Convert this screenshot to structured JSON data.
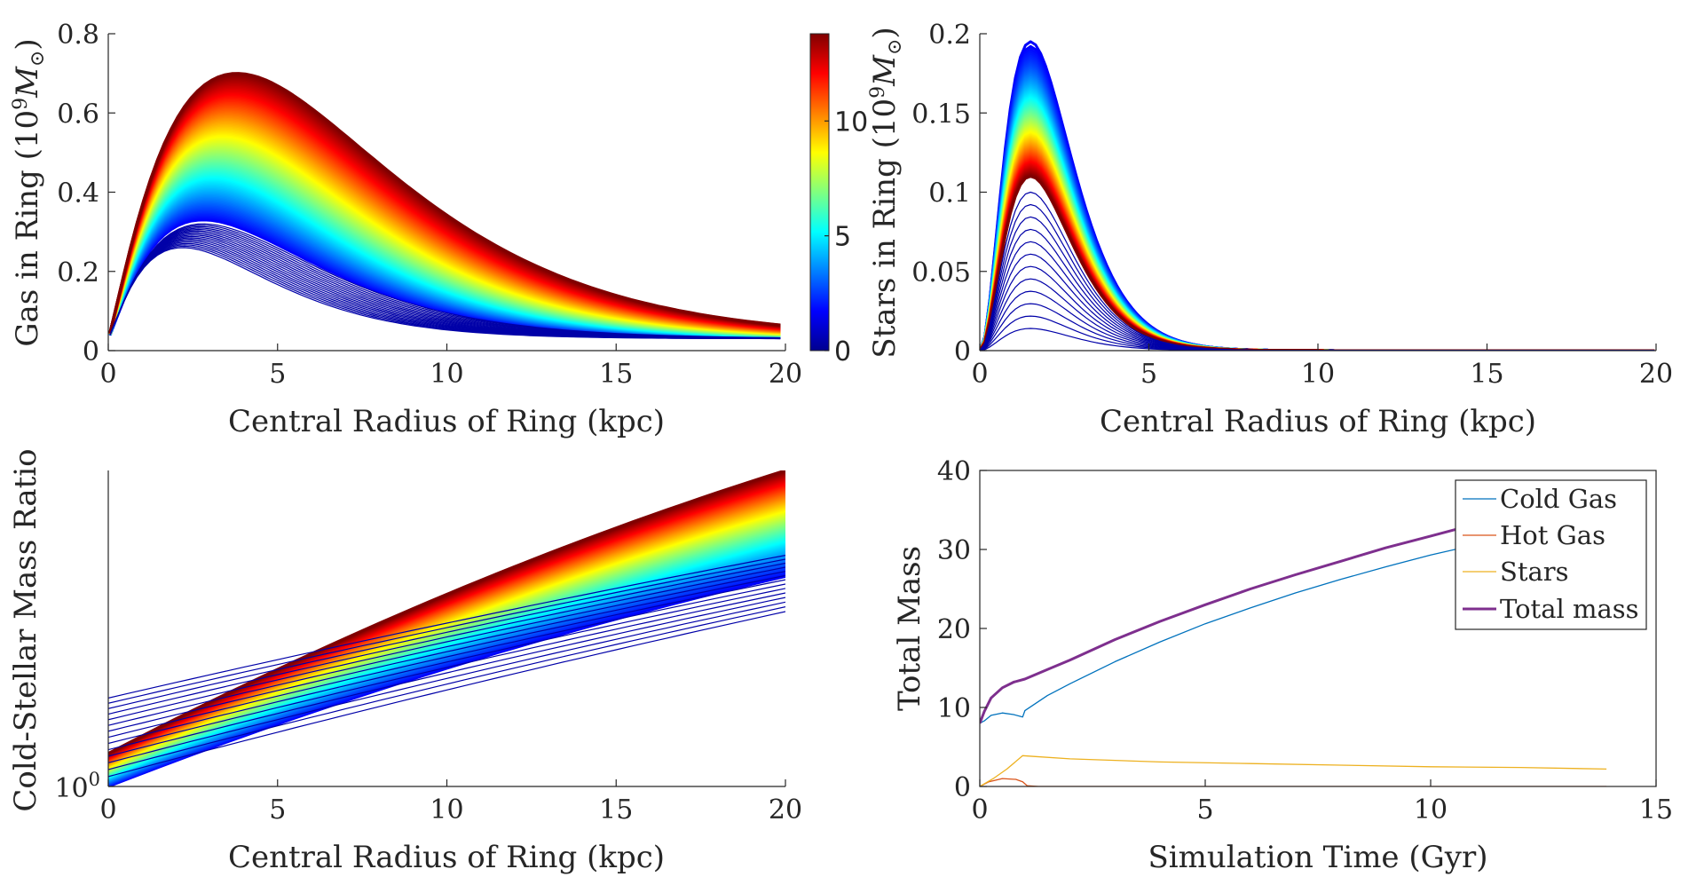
{
  "chart_data": [
    {
      "id": "gas",
      "type": "line",
      "xlabel": "Central Radius of Ring (kpc)",
      "ylabel": "Gas in Ring (10^9 M⊙)",
      "ylabel_parts": {
        "main": "Gas in Ring (10",
        "sup": "9",
        "unit": "M",
        "sub": "⊙",
        "close": ")"
      },
      "xlim": [
        0,
        20
      ],
      "ylim": [
        0,
        0.8
      ],
      "xticks": [
        0,
        5,
        10,
        15,
        20
      ],
      "yticks": [
        0,
        0.2,
        0.4,
        0.6,
        0.8
      ],
      "xtick_labels": [
        "0",
        "5",
        "10",
        "15",
        "20"
      ],
      "ytick_labels": [
        "0",
        "0.2",
        "0.4",
        "0.6",
        "0.8"
      ],
      "colorscale": "jet",
      "early_series": {
        "count": 18,
        "peak_range": [
          0.26,
          0.32
        ],
        "peak_x": [
          2.2,
          2.8
        ],
        "description_units": "10^9 Msun"
      },
      "late_series": {
        "count": 120,
        "peak_range": [
          0.33,
          0.7
        ],
        "peak_x": [
          2.8,
          3.8
        ],
        "end_value_at_20kpc": [
          0.02,
          0.05
        ]
      }
    },
    {
      "id": "stars",
      "type": "line",
      "xlabel": "Central Radius of Ring (kpc)",
      "ylabel": "Stars in Ring (10^9 M⊙)",
      "ylabel_parts": {
        "main": "Stars in Ring (10",
        "sup": "9",
        "unit": "M",
        "sub": "⊙",
        "close": ")"
      },
      "xlim": [
        0,
        20
      ],
      "ylim": [
        0,
        0.2
      ],
      "xticks": [
        0,
        5,
        10,
        15,
        20
      ],
      "yticks": [
        0,
        0.05,
        0.1,
        0.15,
        0.2
      ],
      "xtick_labels": [
        "0",
        "5",
        "10",
        "15",
        "20"
      ],
      "ytick_labels": [
        "0",
        "0.05",
        "0.1",
        "0.15",
        "0.2"
      ],
      "colorscale": "jet",
      "early_series": {
        "count": 12,
        "peak_range": [
          0.014,
          0.1
        ],
        "peak_x": 1.5
      },
      "late_series": {
        "count": 120,
        "peak_range": [
          0.11,
          0.195
        ],
        "peak_x": 1.5
      }
    },
    {
      "id": "ratio",
      "type": "line",
      "xlabel": "Central Radius of Ring (kpc)",
      "ylabel": "Cold-Stellar Mass Ratio",
      "xlim": [
        0,
        20
      ],
      "yscale": "log",
      "ylim": [
        1,
        3.5
      ],
      "xticks": [
        0,
        5,
        10,
        15,
        20
      ],
      "yticks": [
        1
      ],
      "xtick_labels": [
        "0",
        "5",
        "10",
        "15",
        "20"
      ],
      "ytick_labels": [
        "10",
        "0"
      ],
      "colorscale": "jet",
      "early_series": {
        "count": 14,
        "start_range": [
          1.04,
          1.42
        ],
        "end_range": [
          2.0,
          2.5
        ]
      },
      "late_series": {
        "count": 120,
        "start_range": [
          1.0,
          1.14
        ],
        "end_range": [
          2.3,
          3.5
        ]
      }
    },
    {
      "id": "total",
      "type": "line",
      "xlabel": "Simulation Time (Gyr)",
      "ylabel": "Total Mass",
      "xlim": [
        0,
        15
      ],
      "ylim": [
        0,
        40
      ],
      "xticks": [
        0,
        5,
        10,
        15
      ],
      "yticks": [
        0,
        10,
        20,
        30,
        40
      ],
      "xtick_labels": [
        "0",
        "5",
        "10",
        "15"
      ],
      "ytick_labels": [
        "0",
        "10",
        "20",
        "30",
        "40"
      ],
      "legend": "top-right",
      "series": [
        {
          "name": "Cold Gas",
          "color": "#0072BD",
          "x": [
            0,
            0.1,
            0.25,
            0.5,
            0.75,
            0.95,
            1.0,
            1.5,
            2,
            3,
            4,
            5,
            6,
            7,
            8,
            9,
            10,
            11,
            12,
            13,
            13.9
          ],
          "y": [
            8,
            8.3,
            9.0,
            9.3,
            9.1,
            8.8,
            9.6,
            11.5,
            13.0,
            15.8,
            18.3,
            20.6,
            22.6,
            24.5,
            26.2,
            27.8,
            29.3,
            30.6,
            31.9,
            33.1,
            34.0
          ]
        },
        {
          "name": "Hot Gas",
          "color": "#D95319",
          "x": [
            0,
            0.2,
            0.5,
            0.8,
            0.95,
            1.05,
            1.3,
            3,
            6,
            10,
            13.9
          ],
          "y": [
            0,
            0.6,
            1.0,
            0.9,
            0.6,
            0.1,
            0,
            0,
            0,
            0,
            0
          ]
        },
        {
          "name": "Stars",
          "color": "#EDB120",
          "x": [
            0,
            0.3,
            0.6,
            0.95,
            1.2,
            2,
            4,
            6,
            8,
            10,
            12,
            13.9
          ],
          "y": [
            0,
            1.0,
            2.2,
            3.9,
            3.8,
            3.5,
            3.1,
            2.9,
            2.7,
            2.5,
            2.4,
            2.2
          ]
        },
        {
          "name": "Total mass",
          "color": "#7E2F8E",
          "x": [
            0,
            0.1,
            0.25,
            0.5,
            0.75,
            1.0,
            1.5,
            2,
            3,
            4,
            5,
            6,
            7,
            8,
            9,
            10,
            11,
            12,
            13,
            13.9
          ],
          "y": [
            8,
            9.5,
            11.2,
            12.5,
            13.2,
            13.6,
            14.8,
            16.0,
            18.6,
            20.9,
            23.0,
            25.0,
            26.8,
            28.5,
            30.2,
            31.7,
            33.2,
            34.6,
            35.8,
            36.8
          ]
        }
      ]
    }
  ],
  "colorbar": {
    "min": 0,
    "max": 13.8,
    "ticks": [
      0,
      5,
      10
    ],
    "tick_labels": [
      "0",
      "5",
      "10"
    ],
    "colorscale": "jet"
  }
}
